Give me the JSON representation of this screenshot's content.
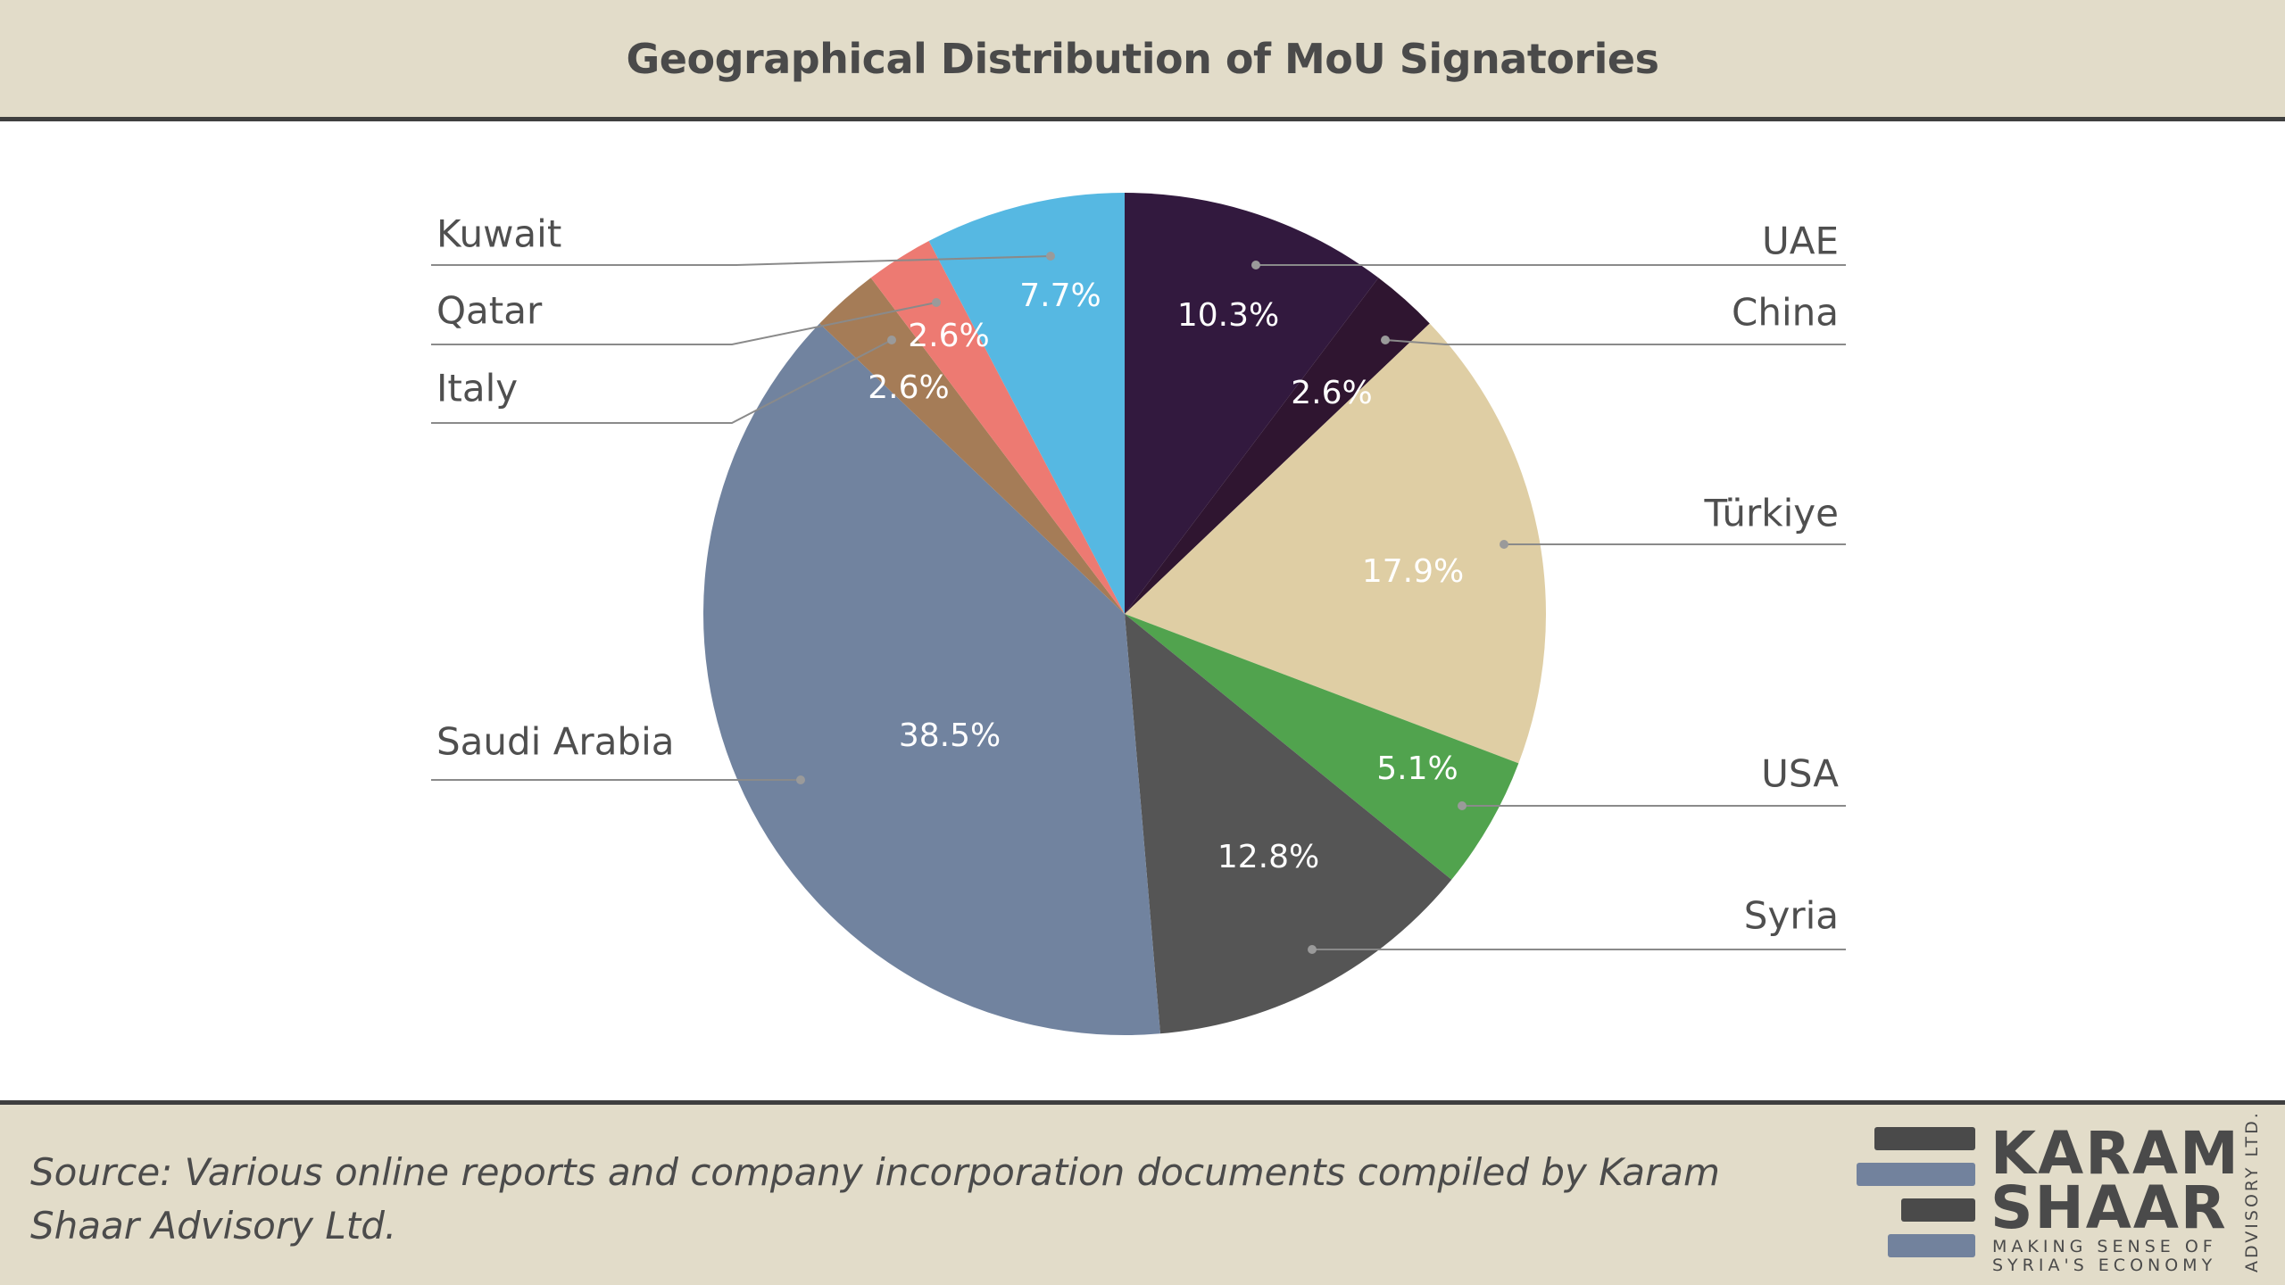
{
  "header": {
    "title": "Geographical Distribution of MoU Signatories"
  },
  "footer": {
    "source": "Source: Various online reports and company incorporation documents compiled by Karam Shaar Advisory Ltd."
  },
  "logo": {
    "line1": "KARAM",
    "line2": "SHAAR",
    "tagline1": "MAKING SENSE OF",
    "tagline2": "SYRIA'S ECONOMY",
    "vertical": "ADVISORY LTD.",
    "colors": {
      "dark": "#4a4a4a",
      "blue": "#72829d"
    }
  },
  "chart_data": {
    "type": "pie",
    "start_angle_deg": 0,
    "direction": "clockwise",
    "slices": [
      {
        "label": "UAE",
        "value": 10.3,
        "display": "10.3%",
        "color": "#32193e"
      },
      {
        "label": "China",
        "value": 2.6,
        "display": "2.6%",
        "color": "#2f1530"
      },
      {
        "label": "Türkiye",
        "value": 17.9,
        "display": "17.9%",
        "color": "#dfcea4"
      },
      {
        "label": "USA",
        "value": 5.1,
        "display": "5.1%",
        "color": "#51a34e"
      },
      {
        "label": "Syria",
        "value": 12.8,
        "display": "12.8%",
        "color": "#555555"
      },
      {
        "label": "Saudi Arabia",
        "value": 38.5,
        "display": "38.5%",
        "color": "#71839f"
      },
      {
        "label": "Italy",
        "value": 2.6,
        "display": "2.6%",
        "color": "#a57c57"
      },
      {
        "label": "Qatar",
        "value": 2.6,
        "display": "2.6%",
        "color": "#ed7a72"
      },
      {
        "label": "Kuwait",
        "value": 7.7,
        "display": "7.7%",
        "color": "#56b8e2"
      }
    ]
  }
}
